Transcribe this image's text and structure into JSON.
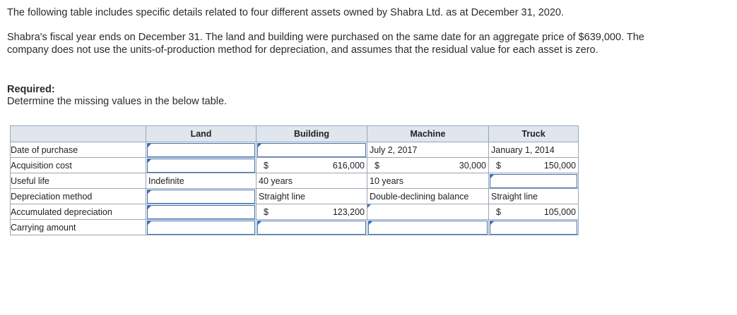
{
  "intro": {
    "p1": "The following table includes specific details related to four different assets owned by Shabra Ltd. as at December 31, 2020.",
    "p2": "Shabra's fiscal year ends on December 31. The land and building were purchased on the same date for an aggregate price of $639,000. The company does not use the units-of-production method for depreciation, and assumes that the residual value for each asset is zero."
  },
  "required": {
    "title": "Required:",
    "body": "Determine the missing values in the below table."
  },
  "table": {
    "headers": [
      "",
      "Land",
      "Building",
      "Machine",
      "Truck"
    ],
    "rows": {
      "date": "Date of purchase",
      "cost": "Acquisition cost",
      "life": "Useful life",
      "method": "Depreciation method",
      "accum": "Accumulated depreciation",
      "carrying": "Carrying amount"
    },
    "currency": "$",
    "land": {
      "useful_life": "Indefinite"
    },
    "building": {
      "cost": "616,000",
      "useful_life": "40 years",
      "method": "Straight line",
      "accum": "123,200"
    },
    "machine": {
      "date": "July 2, 2017",
      "cost": "30,000",
      "useful_life": "10 years",
      "method": "Double-declining balance"
    },
    "truck": {
      "date": "January 1, 2014",
      "cost": "150,000",
      "method": "Straight line",
      "accum": "105,000"
    }
  },
  "colors": {
    "header_bg": "#dfe6ee",
    "input_border": "#3d6fb6",
    "grid": "#9aa6b4"
  }
}
